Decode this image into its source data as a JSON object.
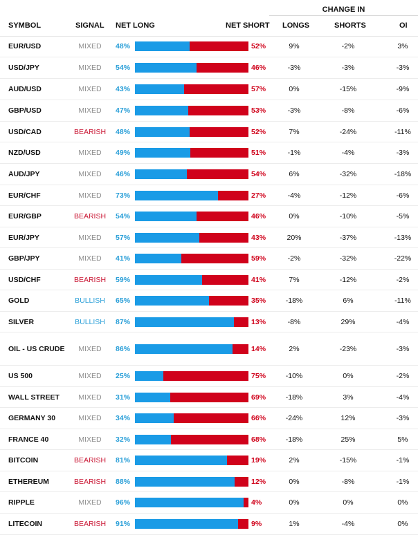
{
  "header": {
    "change_in": "CHANGE IN",
    "symbol": "SYMBOL",
    "signal": "SIGNAL",
    "net_long": "NET LONG",
    "net_short": "NET SHORT",
    "longs": "LONGS",
    "shorts": "SHORTS",
    "oi": "OI"
  },
  "colors": {
    "long": "#1a9be6",
    "short": "#d0021b",
    "mixed": "#8c8c8c",
    "bearish": "#c8102e",
    "bullish": "#2a9fd8"
  },
  "rows": [
    {
      "symbol": "EUR/USD",
      "signal": "MIXED",
      "net_long": 48,
      "net_short": 52,
      "longs": "9%",
      "shorts": "-2%",
      "oi": "3%"
    },
    {
      "symbol": "USD/JPY",
      "signal": "MIXED",
      "net_long": 54,
      "net_short": 46,
      "longs": "-3%",
      "shorts": "-3%",
      "oi": "-3%"
    },
    {
      "symbol": "AUD/USD",
      "signal": "MIXED",
      "net_long": 43,
      "net_short": 57,
      "longs": "0%",
      "shorts": "-15%",
      "oi": "-9%"
    },
    {
      "symbol": "GBP/USD",
      "signal": "MIXED",
      "net_long": 47,
      "net_short": 53,
      "longs": "-3%",
      "shorts": "-8%",
      "oi": "-6%"
    },
    {
      "symbol": "USD/CAD",
      "signal": "BEARISH",
      "net_long": 48,
      "net_short": 52,
      "longs": "7%",
      "shorts": "-24%",
      "oi": "-11%"
    },
    {
      "symbol": "NZD/USD",
      "signal": "MIXED",
      "net_long": 49,
      "net_short": 51,
      "longs": "-1%",
      "shorts": "-4%",
      "oi": "-3%"
    },
    {
      "symbol": "AUD/JPY",
      "signal": "MIXED",
      "net_long": 46,
      "net_short": 54,
      "longs": "6%",
      "shorts": "-32%",
      "oi": "-18%"
    },
    {
      "symbol": "EUR/CHF",
      "signal": "MIXED",
      "net_long": 73,
      "net_short": 27,
      "longs": "-4%",
      "shorts": "-12%",
      "oi": "-6%"
    },
    {
      "symbol": "EUR/GBP",
      "signal": "BEARISH",
      "net_long": 54,
      "net_short": 46,
      "longs": "0%",
      "shorts": "-10%",
      "oi": "-5%"
    },
    {
      "symbol": "EUR/JPY",
      "signal": "MIXED",
      "net_long": 57,
      "net_short": 43,
      "longs": "20%",
      "shorts": "-37%",
      "oi": "-13%"
    },
    {
      "symbol": "GBP/JPY",
      "signal": "MIXED",
      "net_long": 41,
      "net_short": 59,
      "longs": "-2%",
      "shorts": "-32%",
      "oi": "-22%"
    },
    {
      "symbol": "USD/CHF",
      "signal": "BEARISH",
      "net_long": 59,
      "net_short": 41,
      "longs": "7%",
      "shorts": "-12%",
      "oi": "-2%"
    },
    {
      "symbol": "GOLD",
      "signal": "BULLISH",
      "net_long": 65,
      "net_short": 35,
      "longs": "-18%",
      "shorts": "6%",
      "oi": "-11%"
    },
    {
      "symbol": "SILVER",
      "signal": "BULLISH",
      "net_long": 87,
      "net_short": 13,
      "longs": "-8%",
      "shorts": "29%",
      "oi": "-4%"
    },
    {
      "symbol": "OIL - US CRUDE",
      "signal": "MIXED",
      "net_long": 86,
      "net_short": 14,
      "longs": "2%",
      "shorts": "-23%",
      "oi": "-3%"
    },
    {
      "symbol": "US 500",
      "signal": "MIXED",
      "net_long": 25,
      "net_short": 75,
      "longs": "-10%",
      "shorts": "0%",
      "oi": "-2%"
    },
    {
      "symbol": "WALL STREET",
      "signal": "MIXED",
      "net_long": 31,
      "net_short": 69,
      "longs": "-18%",
      "shorts": "3%",
      "oi": "-4%"
    },
    {
      "symbol": "GERMANY 30",
      "signal": "MIXED",
      "net_long": 34,
      "net_short": 66,
      "longs": "-24%",
      "shorts": "12%",
      "oi": "-3%"
    },
    {
      "symbol": "FRANCE 40",
      "signal": "MIXED",
      "net_long": 32,
      "net_short": 68,
      "longs": "-18%",
      "shorts": "25%",
      "oi": "5%"
    },
    {
      "symbol": "BITCOIN",
      "signal": "BEARISH",
      "net_long": 81,
      "net_short": 19,
      "longs": "2%",
      "shorts": "-15%",
      "oi": "-1%"
    },
    {
      "symbol": "ETHEREUM",
      "signal": "BEARISH",
      "net_long": 88,
      "net_short": 12,
      "longs": "0%",
      "shorts": "-8%",
      "oi": "-1%"
    },
    {
      "symbol": "RIPPLE",
      "signal": "MIXED",
      "net_long": 96,
      "net_short": 4,
      "longs": "0%",
      "shorts": "0%",
      "oi": "0%"
    },
    {
      "symbol": "LITECOIN",
      "signal": "BEARISH",
      "net_long": 91,
      "net_short": 9,
      "longs": "1%",
      "shorts": "-4%",
      "oi": "0%"
    }
  ]
}
